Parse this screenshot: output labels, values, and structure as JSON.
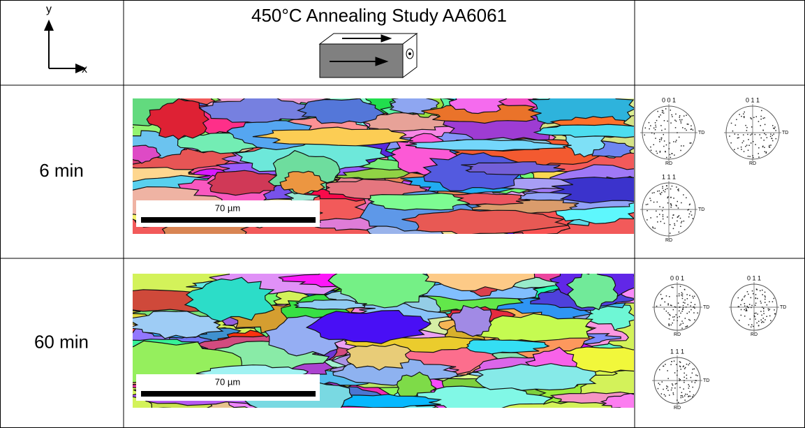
{
  "header": {
    "axis_y": "y",
    "axis_x": "x",
    "title": "450°C Annealing Study AA6061"
  },
  "rows": [
    {
      "label": "6 min",
      "scale_bar": "70 µm",
      "pole_figures": [
        {
          "label": "0 0 1",
          "td": "TD",
          "rd": "RD"
        },
        {
          "label": "0 1 1",
          "td": "TD",
          "rd": "RD"
        },
        {
          "label": "1 1 1",
          "td": "TD",
          "rd": "RD"
        }
      ]
    },
    {
      "label": "60 min",
      "scale_bar": "70 µm",
      "pole_figures": [
        {
          "label": "0 0 1",
          "td": "TD",
          "rd": "RD"
        },
        {
          "label": "0 1 1",
          "td": "TD",
          "rd": "RD"
        },
        {
          "label": "1 1 1",
          "td": "TD",
          "rd": "RD"
        }
      ]
    }
  ]
}
